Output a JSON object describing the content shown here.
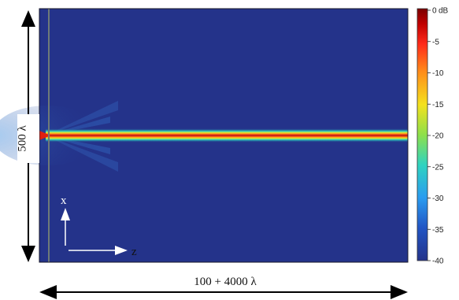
{
  "colorbar": {
    "unit": "dB",
    "ticks": [
      "0",
      "-5",
      "-10",
      "-15",
      "-20",
      "-25",
      "-30",
      "-35",
      "-40"
    ],
    "range": [
      -40,
      0
    ],
    "colors": [
      "#8b0000",
      "#e01010",
      "#f08020",
      "#f0e020",
      "#90e040",
      "#30d0c0",
      "#30a0f0",
      "#2050c8",
      "#24338a"
    ]
  },
  "dimensions": {
    "height_label": "500 λ",
    "width_label": "100 + 4000 λ"
  },
  "axes_indicator": {
    "x_label": "x",
    "z_label": "z"
  },
  "field_map": {
    "background": "#24338a",
    "source_line_color": "#6e7a78",
    "beam_core": "#c01818"
  }
}
